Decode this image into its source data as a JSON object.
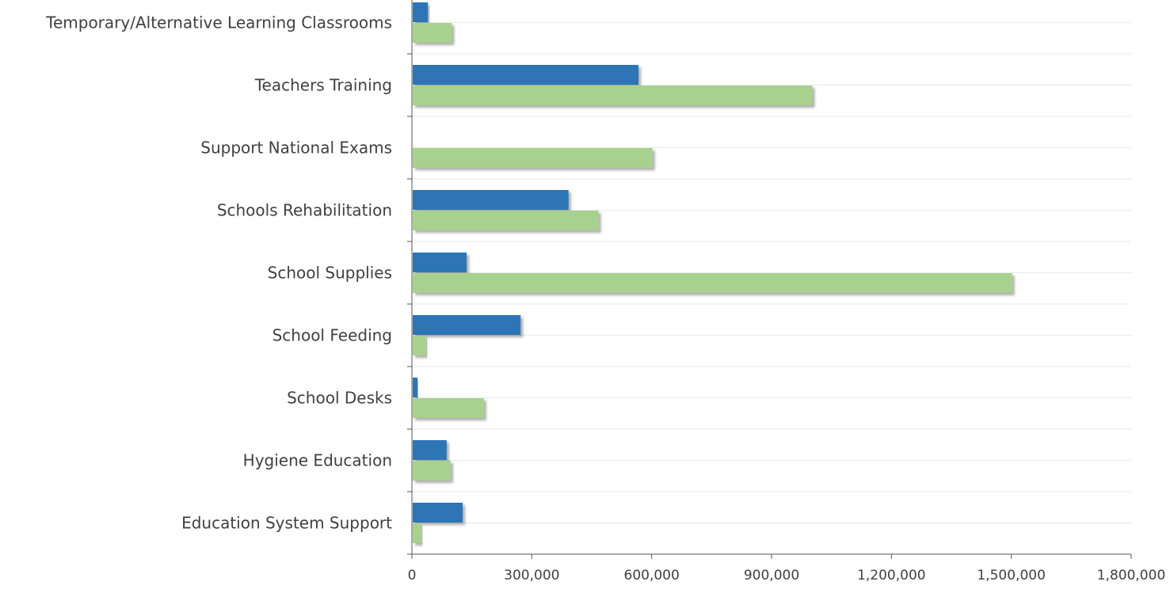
{
  "chart_data": {
    "type": "bar",
    "orientation": "horizontal",
    "title": "",
    "xlabel": "",
    "ylabel": "",
    "categories": [
      "Temporary/Alternative Learning Classrooms",
      "Teachers Training",
      "Support National Exams",
      "Schools Rehabilitation",
      "School Supplies",
      "School Feeding",
      "School Desks",
      "Hygiene Education",
      "Education System Support"
    ],
    "series": [
      {
        "color": "#2e75b6",
        "values": [
          38000,
          565000,
          0,
          390000,
          135000,
          270000,
          12000,
          85000,
          125000
        ]
      },
      {
        "color": "#a9d18e",
        "values": [
          98000,
          1000000,
          600000,
          465000,
          1500000,
          33000,
          178000,
          95000,
          22000
        ]
      }
    ],
    "xlim": [
      0,
      1800000
    ],
    "xticks": [
      0,
      300000,
      600000,
      900000,
      1200000,
      1500000,
      1800000
    ],
    "xtick_labels": [
      "0",
      "300,000",
      "600,000",
      "900,000",
      "1,200,000",
      "1,500,000",
      "1,800,000"
    ],
    "grid": true,
    "legend": "none"
  }
}
